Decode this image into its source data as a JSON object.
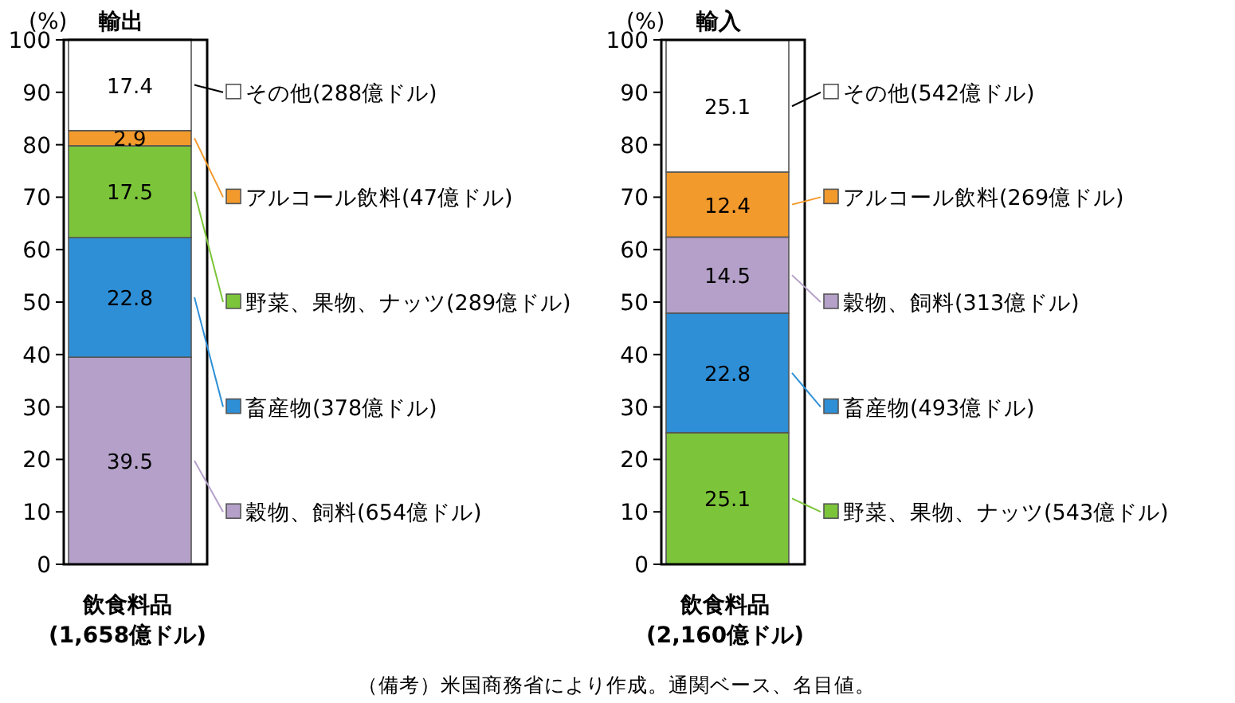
{
  "chart_data": [
    {
      "type": "bar",
      "stacked": true,
      "title": "輸出",
      "ylabel": "(%)",
      "categories": [
        "飲食料品\n(1,658億ドル)"
      ],
      "ylim": [
        0,
        100
      ],
      "yticks": [
        0,
        10,
        20,
        30,
        40,
        50,
        60,
        70,
        80,
        90,
        100
      ],
      "data_labels": true,
      "legend": "right",
      "grid": false,
      "series": [
        {
          "name": "穀物、飼料(654億ドル)",
          "color": "#b4a0c8",
          "values": [
            39.5
          ]
        },
        {
          "name": "畜産物(378億ドル)",
          "color": "#2e8fd6",
          "values": [
            22.8
          ]
        },
        {
          "name": "野菜、果物、ナッツ(289億ドル)",
          "color": "#7cc53a",
          "values": [
            17.5
          ]
        },
        {
          "name": "アルコール飲料(47億ドル)",
          "color": "#f39a2c",
          "values": [
            2.9
          ]
        },
        {
          "name": "その他(288億ドル)",
          "color": "#ffffff",
          "values": [
            17.4
          ]
        }
      ]
    },
    {
      "type": "bar",
      "stacked": true,
      "title": "輸入",
      "ylabel": "(%)",
      "categories": [
        "飲食料品\n(2,160億ドル)"
      ],
      "ylim": [
        0,
        100
      ],
      "yticks": [
        0,
        10,
        20,
        30,
        40,
        50,
        60,
        70,
        80,
        90,
        100
      ],
      "data_labels": true,
      "legend": "right",
      "grid": false,
      "annotations": [
        "（備考）米国商務省により作成。通関ベース、名目値。"
      ],
      "series": [
        {
          "name": "野菜、果物、ナッツ(543億ドル)",
          "color": "#7cc53a",
          "values": [
            25.1
          ]
        },
        {
          "name": "畜産物(493億ドル)",
          "color": "#2e8fd6",
          "values": [
            22.8
          ]
        },
        {
          "name": "穀物、飼料(313億ドル)",
          "color": "#b4a0c8",
          "values": [
            14.5
          ]
        },
        {
          "name": "アルコール飲料(269億ドル)",
          "color": "#f39a2c",
          "values": [
            12.4
          ]
        },
        {
          "name": "その他(542億ドル)",
          "color": "#ffffff",
          "values": [
            25.1
          ]
        }
      ]
    }
  ]
}
